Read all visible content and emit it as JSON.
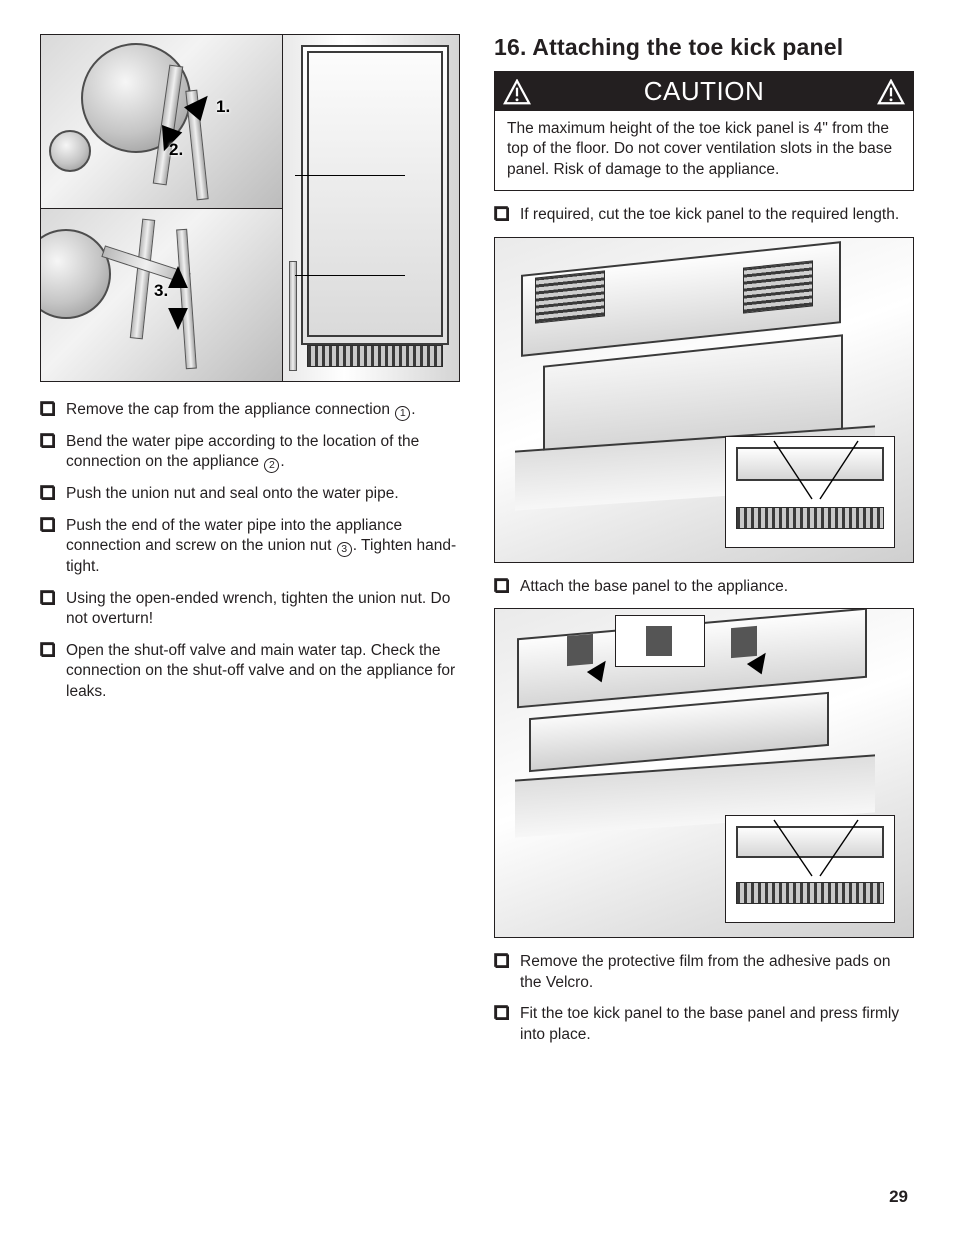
{
  "page_number": "29",
  "colors": {
    "text": "#231f20",
    "background": "#ffffff",
    "panel_border": "#231f20",
    "caution_bg": "#231f20",
    "caution_fg": "#ffffff",
    "metal_light": "#f3f3f3",
    "metal_mid": "#cfcfcf",
    "metal_dark": "#8c8c8c"
  },
  "typography": {
    "body_fontsize_pt": 11,
    "heading_fontsize_pt": 17,
    "caution_fontsize_pt": 19,
    "font_family": "Helvetica"
  },
  "left_figure": {
    "callouts": [
      "1.",
      "2.",
      "3."
    ]
  },
  "left_steps": [
    {
      "text": "Remove the cap from the appliance connection ",
      "ref": "1",
      "suffix": "."
    },
    {
      "text": "Bend the water pipe according to the location of the connection on the appliance ",
      "ref": "2",
      "suffix": "."
    },
    {
      "text": "Push the union nut and seal onto the water pipe."
    },
    {
      "text": "Push the end of the water pipe into the appliance connection and screw on the union nut ",
      "ref": "3",
      "suffix": ". Tighten hand-tight."
    },
    {
      "text": "Using the open-ended wrench, tighten the union nut. Do not overturn!"
    },
    {
      "text": "Open the shut-off valve and main water tap. Check the connection on the shut-off valve and on the appliance for leaks."
    }
  ],
  "right": {
    "heading": "16.  Attaching the toe kick panel",
    "caution_label": "CAUTION",
    "caution_body": "The maximum height of the toe kick panel is 4\" from the top of the floor. Do not cover ventilation slots in the base panel. Risk of damage to the appliance.",
    "step_a": "If required, cut the toe kick panel to the required length.",
    "step_b": "Attach the base panel to the appliance.",
    "step_c": "Remove the protective film from the adhesive pads on the Velcro.",
    "step_d": "Fit the toe kick panel to the base panel and press firmly into place."
  }
}
